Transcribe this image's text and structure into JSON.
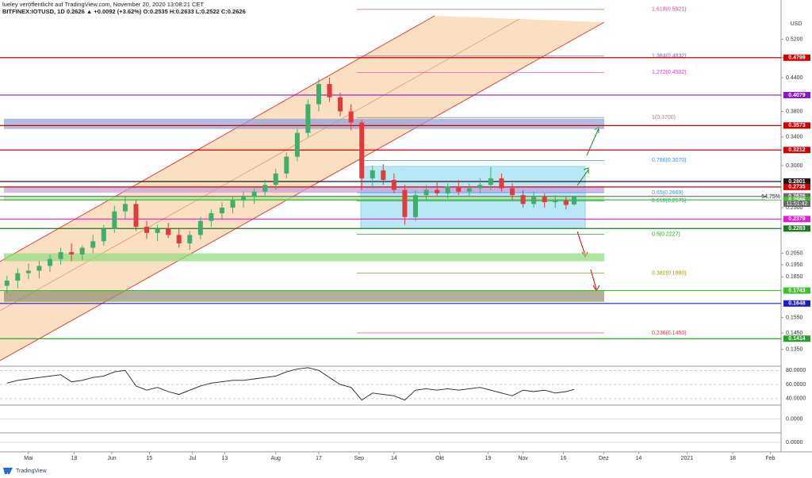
{
  "chart_data": {
    "type": "candlestick",
    "title": "lueley veröffentlicht auf TradingView.com, November 20, 2020 13:08:21 CET",
    "subtitle": "BITFINEX:IOTUSD, 1D 0.2626 ▲ +0.0092 (+3.62%) O:0.2535 H:0.2633 L:0.2522 C:0.2626",
    "currency": "USD",
    "footer": "TradingView",
    "log_scale": true,
    "up_color": "#3fae6b",
    "down_color": "#e0393e",
    "ylim": [
      0.125,
      0.6
    ],
    "xlim": [
      -10,
      280
    ],
    "yticks": [
      {
        "value": 0.52,
        "label": "0.5200"
      },
      {
        "value": 0.48,
        "label": "0.4800"
      },
      {
        "value": 0.44,
        "label": "0.4400"
      },
      {
        "value": 0.38,
        "label": "0.3800"
      },
      {
        "value": 0.34,
        "label": "0.3400"
      },
      {
        "value": 0.3,
        "label": "0.3000"
      },
      {
        "value": 0.25,
        "label": "0.2500"
      },
      {
        "value": 0.205,
        "label": "0.2050"
      },
      {
        "value": 0.195,
        "label": "0.1950"
      },
      {
        "value": 0.185,
        "label": "0.1850"
      },
      {
        "value": 0.155,
        "label": "0.1550"
      },
      {
        "value": 0.145,
        "label": "0.1450"
      },
      {
        "value": 0.135,
        "label": "0.1350"
      }
    ],
    "xticks": [
      {
        "value": 0,
        "label": "Mai"
      },
      {
        "value": 17,
        "label": "18"
      },
      {
        "value": 31,
        "label": "Jun"
      },
      {
        "value": 45,
        "label": "15"
      },
      {
        "value": 61,
        "label": "Jul"
      },
      {
        "value": 73,
        "label": "13"
      },
      {
        "value": 92,
        "label": "Aug"
      },
      {
        "value": 108,
        "label": "17"
      },
      {
        "value": 123,
        "label": "Sep"
      },
      {
        "value": 136,
        "label": "14"
      },
      {
        "value": 153,
        "label": "Okt"
      },
      {
        "value": 171,
        "label": "19"
      },
      {
        "value": 184,
        "label": "Nov"
      },
      {
        "value": 199,
        "label": "16"
      },
      {
        "value": 214,
        "label": "Dez"
      },
      {
        "value": 227,
        "label": "14"
      },
      {
        "value": 245,
        "label": "2021"
      },
      {
        "value": 262,
        "label": "18"
      },
      {
        "value": 276,
        "label": "Feb"
      }
    ],
    "candles": {
      "x": [
        -8,
        -4,
        0,
        4,
        8,
        12,
        16,
        20,
        24,
        28,
        32,
        36,
        40,
        44,
        48,
        52,
        56,
        60,
        64,
        68,
        72,
        76,
        80,
        84,
        88,
        92,
        96,
        100,
        104,
        108,
        112,
        116,
        120,
        124,
        128,
        132,
        136,
        140,
        144,
        148,
        152,
        156,
        160,
        164,
        168,
        172,
        176,
        180,
        184,
        188,
        192,
        196,
        200,
        203
      ],
      "open": [
        0.178,
        0.182,
        0.188,
        0.19,
        0.194,
        0.2,
        0.206,
        0.204,
        0.21,
        0.216,
        0.228,
        0.246,
        0.254,
        0.23,
        0.224,
        0.228,
        0.222,
        0.214,
        0.222,
        0.236,
        0.244,
        0.25,
        0.258,
        0.262,
        0.268,
        0.276,
        0.29,
        0.312,
        0.346,
        0.392,
        0.428,
        0.404,
        0.38,
        0.362,
        0.284,
        0.294,
        0.282,
        0.27,
        0.24,
        0.264,
        0.27,
        0.266,
        0.274,
        0.268,
        0.272,
        0.276,
        0.284,
        0.272,
        0.264,
        0.254,
        0.262,
        0.256,
        0.258,
        0.2535
      ],
      "high": [
        0.186,
        0.192,
        0.196,
        0.198,
        0.204,
        0.21,
        0.214,
        0.212,
        0.222,
        0.232,
        0.252,
        0.262,
        0.258,
        0.236,
        0.232,
        0.234,
        0.228,
        0.226,
        0.24,
        0.248,
        0.256,
        0.262,
        0.268,
        0.272,
        0.282,
        0.296,
        0.318,
        0.352,
        0.4,
        0.438,
        0.44,
        0.412,
        0.392,
        0.366,
        0.3,
        0.302,
        0.29,
        0.276,
        0.27,
        0.276,
        0.28,
        0.278,
        0.282,
        0.278,
        0.284,
        0.298,
        0.29,
        0.278,
        0.27,
        0.268,
        0.266,
        0.264,
        0.262,
        0.2633
      ],
      "low": [
        0.172,
        0.176,
        0.183,
        0.184,
        0.189,
        0.195,
        0.198,
        0.199,
        0.205,
        0.212,
        0.224,
        0.238,
        0.226,
        0.218,
        0.216,
        0.219,
        0.21,
        0.208,
        0.218,
        0.23,
        0.238,
        0.244,
        0.25,
        0.254,
        0.262,
        0.27,
        0.284,
        0.306,
        0.34,
        0.38,
        0.396,
        0.372,
        0.35,
        0.27,
        0.272,
        0.276,
        0.266,
        0.232,
        0.236,
        0.258,
        0.262,
        0.26,
        0.264,
        0.262,
        0.266,
        0.27,
        0.268,
        0.258,
        0.25,
        0.25,
        0.25,
        0.25,
        0.248,
        0.2522
      ],
      "close": [
        0.182,
        0.188,
        0.19,
        0.194,
        0.2,
        0.206,
        0.204,
        0.21,
        0.216,
        0.228,
        0.246,
        0.254,
        0.23,
        0.224,
        0.228,
        0.222,
        0.214,
        0.222,
        0.236,
        0.244,
        0.25,
        0.258,
        0.262,
        0.268,
        0.276,
        0.29,
        0.312,
        0.346,
        0.392,
        0.428,
        0.404,
        0.38,
        0.362,
        0.284,
        0.294,
        0.282,
        0.27,
        0.24,
        0.264,
        0.27,
        0.266,
        0.274,
        0.268,
        0.272,
        0.276,
        0.284,
        0.272,
        0.264,
        0.254,
        0.262,
        0.256,
        0.258,
        0.253,
        0.2626
      ]
    },
    "levels": [
      {
        "value": 0.4799,
        "color": "#d40000"
      },
      {
        "value": 0.4079,
        "color": "#8a18c9"
      },
      {
        "value": 0.3573,
        "color": "#d40000"
      },
      {
        "value": 0.3212,
        "color": "#d40000"
      },
      {
        "value": 0.2801,
        "color": "#1a1a1a"
      },
      {
        "value": 0.2735,
        "color": "#d40000"
      },
      {
        "value": 0.2626,
        "color": "#6b6b6b"
      },
      {
        "value": 0.2586,
        "color": "#3fbf2f"
      },
      {
        "value": 0.2379,
        "color": "#e01fd0"
      },
      {
        "value": 0.2283,
        "color": "#1f7a1f"
      },
      {
        "value": 0.1743,
        "color": "#3fbf2f"
      },
      {
        "value": 0.1648,
        "color": "#1a1ad0"
      },
      {
        "value": 0.1414,
        "color": "#2e9e2e"
      }
    ],
    "fib_levels": [
      {
        "value": 0.5921,
        "label": "1.618(0.5921)",
        "color": "#c06090"
      },
      {
        "value": 0.4832,
        "label": "1.384(0.4832)",
        "color": "#7a5ab0"
      },
      {
        "value": 0.4502,
        "label": "1.272(0.4502)",
        "color": "#e040c0"
      },
      {
        "value": 0.37,
        "label": "1(0.3700)",
        "color": "#888888"
      },
      {
        "value": 0.307,
        "label": "0.786(0.3070)",
        "color": "#4a90d0"
      },
      {
        "value": 0.2669,
        "label": "0.65(0.2669)",
        "color": "#4a90d0"
      },
      {
        "value": 0.2575,
        "label": "0.618(0.2575)",
        "color": "#2e9e6e"
      },
      {
        "value": 0.2227,
        "label": "0.5(0.2227)",
        "color": "#2e9e2e"
      },
      {
        "value": 0.188,
        "label": "0.382(0.1880)",
        "color": "#9a9a20"
      },
      {
        "value": 0.145,
        "label": "0.236(0.1450)",
        "color": "#d04040"
      }
    ],
    "zones": [
      {
        "low": 0.352,
        "high": 0.368,
        "color": "#8e9fd8"
      },
      {
        "low": 0.2669,
        "high": 0.2735,
        "color": "#c79be0"
      },
      {
        "low": 0.2575,
        "high": 0.2626,
        "color": "#a9e59a"
      },
      {
        "low": 0.198,
        "high": 0.205,
        "color": "#8fdc7c"
      },
      {
        "low": 0.166,
        "high": 0.174,
        "color": "#8e8e6e"
      }
    ],
    "volume_ratio": "54.75%",
    "countdown": "11:51:42",
    "rsi": {
      "color": "#222222",
      "ylim": [
        32,
        86
      ],
      "yticks": [
        {
          "value": 80,
          "label": "80.0000"
        },
        {
          "value": 60,
          "label": "60.0000"
        },
        {
          "value": 40,
          "label": "40.0000"
        }
      ],
      "values": [
        62,
        66,
        68,
        70,
        72,
        74,
        64,
        66,
        70,
        72,
        78,
        80,
        58,
        52,
        56,
        50,
        46,
        52,
        58,
        62,
        64,
        66,
        66,
        68,
        70,
        72,
        78,
        82,
        84,
        80,
        70,
        60,
        56,
        38,
        48,
        46,
        44,
        38,
        52,
        54,
        52,
        54,
        52,
        54,
        56,
        52,
        48,
        44,
        52,
        50,
        52,
        48,
        50,
        53
      ]
    },
    "macd": {
      "ylim": [
        -0.02,
        0.02
      ],
      "yticks": [
        {
          "value": 0,
          "label": "0.0000"
        }
      ]
    },
    "osc": {
      "ylim": [
        -0.01,
        0.01
      ],
      "yticks": [
        {
          "value": 0,
          "label": "0.0000"
        }
      ]
    }
  }
}
